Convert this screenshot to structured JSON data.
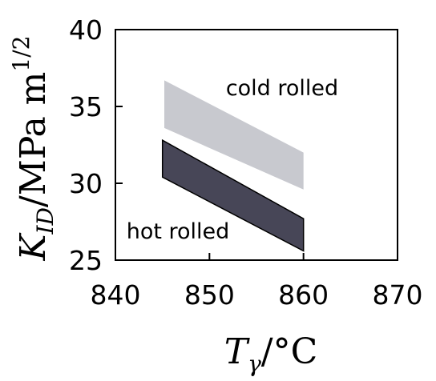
{
  "chart_data": {
    "type": "area",
    "xlabel": {
      "main": "T",
      "sub": "γ",
      "rest": "/°C"
    },
    "ylabel": {
      "main": "K",
      "sub": "ID",
      "rest": "/MPa m",
      "sup": "1/2"
    },
    "xlim": [
      840,
      870
    ],
    "ylim": [
      25,
      40
    ],
    "xticks": [
      840,
      850,
      860,
      870
    ],
    "yticks": [
      25,
      30,
      35,
      40
    ],
    "grid": false,
    "series": [
      {
        "name": "cold rolled",
        "color": "#c8c9cf",
        "upper": [
          [
            845.2,
            36.7
          ],
          [
            860.0,
            32.0
          ]
        ],
        "lower": [
          [
            845.2,
            33.6
          ],
          [
            860.0,
            29.6
          ]
        ]
      },
      {
        "name": "hot rolled",
        "color": "#474657",
        "upper": [
          [
            845.0,
            32.8
          ],
          [
            860.0,
            27.7
          ]
        ],
        "lower": [
          [
            845.0,
            30.4
          ],
          [
            860.0,
            25.6
          ]
        ]
      }
    ]
  }
}
